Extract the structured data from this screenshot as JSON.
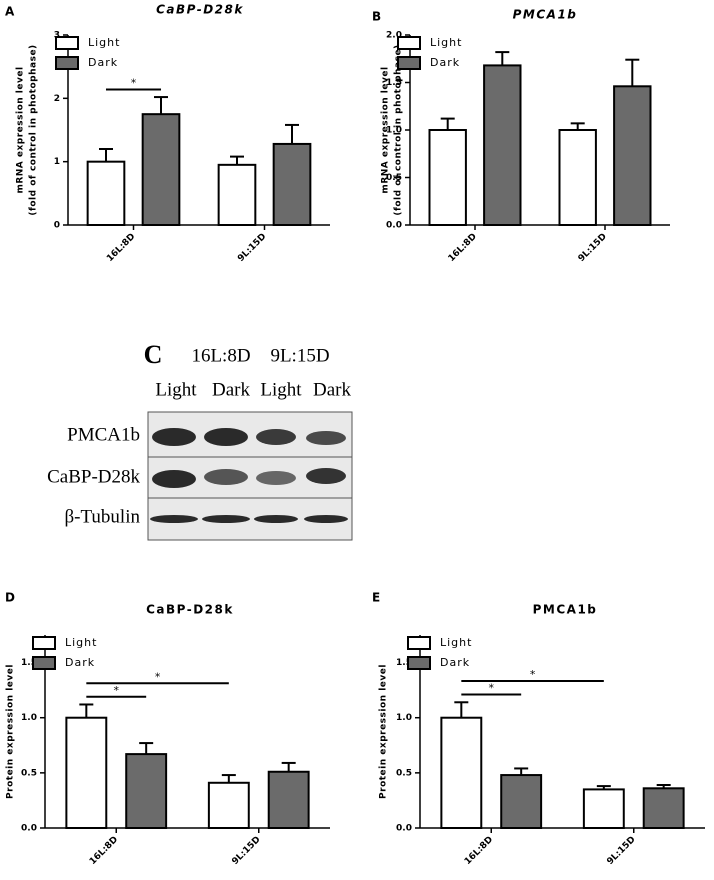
{
  "chart_data": [
    {
      "type": "bar",
      "panel": "A",
      "title": "CaBP-D28k",
      "ylabel": [
        "mRNA expression level",
        "(fold of control in photophase)"
      ],
      "categories": [
        "16L:8D",
        "9L:15D"
      ],
      "series": [
        {
          "name": "Light",
          "color": "#ffffff",
          "values": [
            1.0,
            0.95
          ],
          "errors": [
            0.2,
            0.13
          ]
        },
        {
          "name": "Dark",
          "color": "#6b6b6b",
          "values": [
            1.75,
            1.28
          ],
          "errors": [
            0.27,
            0.3
          ]
        }
      ],
      "ylim": [
        0,
        3
      ],
      "yticks": [
        0,
        1,
        2,
        3
      ],
      "annotations": [
        {
          "text": "*",
          "from": {
            "series": 0,
            "category": 0
          },
          "to": {
            "series": 1,
            "category": 0
          }
        }
      ]
    },
    {
      "type": "bar",
      "panel": "B",
      "title": "PMCA1b",
      "ylabel": [
        "mRNA expression level",
        "(fold of control in photophase)"
      ],
      "categories": [
        "16L:8D",
        "9L:15D"
      ],
      "series": [
        {
          "name": "Light",
          "color": "#ffffff",
          "values": [
            1.0,
            1.0
          ],
          "errors": [
            0.12,
            0.07
          ]
        },
        {
          "name": "Dark",
          "color": "#6b6b6b",
          "values": [
            1.68,
            1.46
          ],
          "errors": [
            0.14,
            0.28
          ]
        }
      ],
      "ylim": [
        0,
        2
      ],
      "yticks": [
        {
          "value": 0,
          "label": "0.0"
        },
        0.5,
        {
          "value": 1,
          "label": "1.0"
        },
        1.5,
        {
          "value": 2,
          "label": "2.0"
        }
      ]
    },
    {
      "type": "bar",
      "panel": "D",
      "title": "CaBP-D28k",
      "ylabel": [
        "Protein expression level"
      ],
      "categories": [
        "16L:8D",
        "9L:15D"
      ],
      "series": [
        {
          "name": "Light",
          "color": "#ffffff",
          "values": [
            1.0,
            0.41
          ],
          "errors": [
            0.12,
            0.07
          ]
        },
        {
          "name": "Dark",
          "color": "#6b6b6b",
          "values": [
            0.67,
            0.51
          ],
          "errors": [
            0.1,
            0.08
          ]
        }
      ],
      "ylim": [
        0,
        1.75
      ],
      "yticks": [
        {
          "value": 0,
          "label": "0.0"
        },
        0.5,
        {
          "value": 1,
          "label": "1.0"
        },
        1.5
      ],
      "annotations": [
        {
          "text": "*",
          "from": {
            "series": 0,
            "category": 0
          },
          "to": {
            "series": 1,
            "category": 0
          }
        },
        {
          "text": "*",
          "from": {
            "series": 0,
            "category": 0
          },
          "to": {
            "series": 0,
            "category": 1
          }
        }
      ]
    },
    {
      "type": "bar",
      "panel": "E",
      "title": "PMCA1b",
      "ylabel": [
        "Protein expression level"
      ],
      "categories": [
        "16L:8D",
        "9L:15D"
      ],
      "series": [
        {
          "name": "Light",
          "color": "#ffffff",
          "values": [
            1.0,
            0.35
          ],
          "errors": [
            0.14,
            0.03
          ]
        },
        {
          "name": "Dark",
          "color": "#6b6b6b",
          "values": [
            0.48,
            0.36
          ],
          "errors": [
            0.06,
            0.03
          ]
        }
      ],
      "ylim": [
        0,
        1.75
      ],
      "yticks": [
        {
          "value": 0,
          "label": "0.0"
        },
        0.5,
        {
          "value": 1,
          "label": "1.0"
        },
        1.5
      ],
      "annotations": [
        {
          "text": "*",
          "from": {
            "series": 0,
            "category": 0
          },
          "to": {
            "series": 1,
            "category": 0
          }
        },
        {
          "text": "*",
          "from": {
            "series": 0,
            "category": 0
          },
          "to": {
            "series": 0,
            "category": 1
          }
        }
      ]
    }
  ],
  "blot": {
    "panel": "C",
    "groups": [
      "16L:8D",
      "9L:15D"
    ],
    "lanes": [
      "Light",
      "Dark",
      "Light",
      "Dark"
    ],
    "rows": [
      "PMCA1b",
      "CaBP-D28k",
      "β-Tubulin"
    ]
  }
}
